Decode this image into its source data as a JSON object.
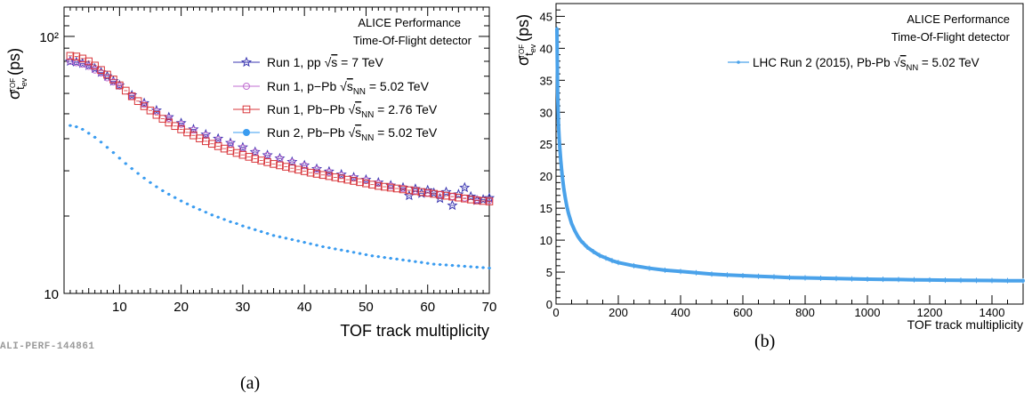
{
  "captions": {
    "a": "(a)",
    "b": "(b)"
  },
  "colors": {
    "run1_pp": "#3a36b0",
    "run1_ppb": "#c06ed0",
    "run1_pbpb": "#d8353a",
    "run2_pbpb": "#3a9cf0",
    "run2_line": "#4aa2ea"
  },
  "chart_data": [
    {
      "type": "scatter",
      "panel": "a",
      "ylabel": "σ t_ev^TOF (ps)",
      "xlabel": "TOF track multiplicity",
      "xlim": [
        1,
        70
      ],
      "ylim": [
        10,
        130
      ],
      "yscale": "log",
      "x_ticks": [
        10,
        20,
        30,
        40,
        50,
        60,
        70
      ],
      "y_ticks": [
        "10",
        "10²"
      ],
      "annotations": [
        "ALICE Performance",
        "Time-Of-Flight detector"
      ],
      "watermark": "ALI-PERF-144861",
      "legend_position": "top-right",
      "series": [
        {
          "name": "Run 1, pp √s = 7 TeV",
          "marker": "star",
          "x": [
            2,
            3,
            4,
            5,
            6,
            7,
            8,
            9,
            10,
            12,
            14,
            16,
            18,
            20,
            22,
            24,
            26,
            28,
            30,
            32,
            34,
            36,
            38,
            40,
            42,
            44,
            46,
            48,
            50,
            52,
            54,
            56,
            57,
            58,
            59,
            60,
            61,
            62,
            63,
            64,
            65,
            66,
            67,
            68,
            69,
            70
          ],
          "y": [
            80,
            79.5,
            78.5,
            77,
            75,
            72.5,
            70,
            67,
            64.5,
            59,
            55,
            51.5,
            48.5,
            46,
            43.5,
            41.5,
            40,
            38.5,
            37,
            35.5,
            34.5,
            33.5,
            32.5,
            31.5,
            30.5,
            29.8,
            29,
            28.3,
            27.7,
            27,
            26.3,
            25.8,
            24,
            25.5,
            24.5,
            25.2,
            24.6,
            23.4,
            24.8,
            22,
            24.3,
            25.8,
            23.8,
            23,
            23.2,
            23.5
          ]
        },
        {
          "name": "Run 1, p−Pb √s_NN = 5.02 TeV",
          "marker": "circle-open",
          "x": [
            2,
            3,
            4,
            5,
            6,
            7,
            8,
            9,
            10,
            12,
            14,
            16,
            18,
            20,
            22,
            24,
            26,
            28,
            30,
            32,
            34,
            36,
            38,
            40,
            42,
            44,
            46,
            48,
            50,
            52,
            54,
            56,
            58,
            60,
            62,
            64,
            66,
            68,
            70
          ],
          "y": [
            80,
            79,
            78,
            76.5,
            74,
            72,
            69,
            66.5,
            64,
            58.5,
            54.5,
            51,
            48,
            45.5,
            43.2,
            41.2,
            39.6,
            38.2,
            36.8,
            35.4,
            34.4,
            33.4,
            32.4,
            31.4,
            30.4,
            29.6,
            28.8,
            28.1,
            27.5,
            26.8,
            26.2,
            25.6,
            25.1,
            24.6,
            24.2,
            23.8,
            23.5,
            23.2,
            23
          ]
        },
        {
          "name": "Run 1, Pb−Pb √s_NN = 2.76 TeV",
          "marker": "square-open",
          "x": [
            2,
            3,
            4,
            5,
            6,
            7,
            8,
            9,
            10,
            11,
            12,
            13,
            14,
            15,
            16,
            17,
            18,
            19,
            20,
            21,
            22,
            23,
            24,
            25,
            26,
            27,
            28,
            29,
            30,
            31,
            32,
            33,
            34,
            35,
            36,
            37,
            38,
            39,
            40,
            41,
            42,
            43,
            44,
            45,
            46,
            47,
            48,
            49,
            50,
            51,
            52,
            53,
            54,
            55,
            56,
            57,
            58,
            59,
            60,
            61,
            62,
            63,
            64,
            65,
            66,
            67,
            68,
            69,
            70
          ],
          "y": [
            84,
            83.5,
            82,
            80,
            77,
            74,
            71,
            68,
            64.5,
            61.5,
            58.5,
            56,
            53.5,
            51.5,
            49.5,
            47.8,
            46.2,
            44.8,
            43.5,
            42.3,
            41.2,
            40.1,
            39.1,
            38.2,
            37.4,
            36.6,
            35.9,
            35.2,
            34.6,
            34,
            33.4,
            32.9,
            32.4,
            31.9,
            31.5,
            31.1,
            30.7,
            30.3,
            29.9,
            29.5,
            29.2,
            28.9,
            28.6,
            28.3,
            28,
            27.7,
            27.4,
            27.1,
            26.8,
            26.5,
            26.2,
            26,
            25.8,
            25.6,
            25.4,
            25.2,
            25,
            24.8,
            24.6,
            24.4,
            24.2,
            24,
            23.8,
            23.6,
            23.4,
            23.2,
            23,
            22.9,
            22.8
          ]
        },
        {
          "name": "Run 2, Pb−Pb √s_NN = 5.02 TeV",
          "marker": "circle-filled",
          "x": [
            2,
            3,
            4,
            5,
            6,
            7,
            8,
            9,
            10,
            11,
            12,
            13,
            14,
            15,
            16,
            17,
            18,
            19,
            20,
            21,
            22,
            23,
            24,
            25,
            26,
            27,
            28,
            29,
            30,
            31,
            32,
            33,
            34,
            35,
            36,
            37,
            38,
            39,
            40,
            41,
            42,
            43,
            44,
            45,
            46,
            47,
            48,
            49,
            50,
            51,
            52,
            53,
            54,
            55,
            56,
            57,
            58,
            59,
            60,
            61,
            62,
            63,
            64,
            65,
            66,
            67,
            68,
            69,
            70
          ],
          "y": [
            45,
            44.5,
            43.5,
            42,
            40.5,
            38.8,
            37,
            35.3,
            33.6,
            32,
            30.6,
            29.3,
            28.1,
            27,
            26,
            25.1,
            24.3,
            23.6,
            22.9,
            22.3,
            21.7,
            21.2,
            20.7,
            20.2,
            19.8,
            19.4,
            19,
            18.7,
            18.3,
            18,
            17.7,
            17.4,
            17.1,
            16.8,
            16.6,
            16.4,
            16.2,
            16,
            15.8,
            15.6,
            15.4,
            15.2,
            15.05,
            14.9,
            14.75,
            14.6,
            14.45,
            14.3,
            14.15,
            14,
            13.9,
            13.8,
            13.7,
            13.6,
            13.5,
            13.4,
            13.3,
            13.2,
            13.1,
            13,
            12.95,
            12.9,
            12.85,
            12.8,
            12.75,
            12.7,
            12.65,
            12.6,
            12.55
          ]
        }
      ]
    },
    {
      "type": "scatter",
      "panel": "b",
      "ylabel": "σ t_ev^TOF (ps)",
      "xlabel": "TOF track multiplicity",
      "xlim": [
        0,
        1500
      ],
      "ylim": [
        0,
        47
      ],
      "yscale": "linear",
      "x_ticks": [
        0,
        200,
        400,
        600,
        800,
        1000,
        1200,
        1400
      ],
      "y_ticks": [
        0,
        5,
        10,
        15,
        20,
        25,
        30,
        35,
        40,
        45
      ],
      "annotations": [
        "ALICE Performance",
        "Time-Of-Flight detector"
      ],
      "legend_position": "top-right",
      "series": [
        {
          "name": "LHC Run 2 (2015), Pb-Pb √s_NN = 5.02 TeV",
          "marker": "point",
          "x": [
            3,
            5,
            8,
            10,
            12,
            15,
            18,
            20,
            25,
            30,
            35,
            40,
            50,
            60,
            70,
            80,
            90,
            100,
            120,
            140,
            160,
            180,
            200,
            250,
            300,
            350,
            400,
            450,
            500,
            550,
            600,
            650,
            700,
            750,
            800,
            850,
            900,
            950,
            1000,
            1050,
            1100,
            1150,
            1200,
            1250,
            1300,
            1350,
            1400,
            1450,
            1500
          ],
          "y": [
            43,
            33,
            28,
            26,
            24.5,
            22.5,
            21,
            20,
            18,
            16.5,
            15.2,
            14.2,
            12.6,
            11.5,
            10.6,
            9.9,
            9.4,
            8.9,
            8.2,
            7.6,
            7.2,
            6.8,
            6.5,
            6,
            5.6,
            5.3,
            5.1,
            4.9,
            4.7,
            4.55,
            4.45,
            4.35,
            4.25,
            4.15,
            4.1,
            4.05,
            4,
            3.95,
            3.9,
            3.87,
            3.84,
            3.8,
            3.77,
            3.74,
            3.72,
            3.7,
            3.68,
            3.66,
            3.64
          ]
        }
      ]
    }
  ]
}
